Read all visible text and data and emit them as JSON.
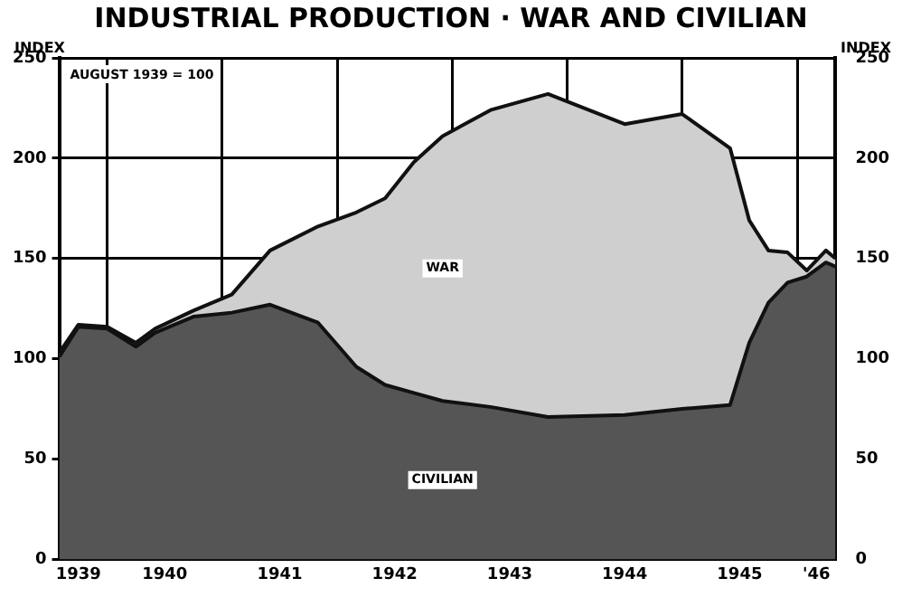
{
  "chart_data": {
    "type": "area",
    "title": "INDUSTRIAL PRODUCTION · WAR AND CIVILIAN",
    "ylabel": "INDEX",
    "y2label": "INDEX",
    "annotations": [
      "AUGUST 1939 = 100"
    ],
    "x": [
      "1939-08",
      "1939-10",
      "1940-01",
      "1940-04",
      "1940-06",
      "1940-10",
      "1941-02",
      "1941-06",
      "1941-11",
      "1942-03",
      "1942-06",
      "1942-09",
      "1942-12",
      "1943-05",
      "1943-11",
      "1944-07",
      "1945-01",
      "1945-06",
      "1945-08",
      "1945-10",
      "1945-12",
      "1946-02",
      "1946-04",
      "1946-05"
    ],
    "stacked": true,
    "series": [
      {
        "name": "CIVILIAN",
        "color": "#555555",
        "values": [
          101,
          116,
          115,
          106,
          113,
          121,
          123,
          127,
          118,
          96,
          87,
          83,
          79,
          76,
          71,
          72,
          75,
          77,
          108,
          128,
          138,
          141,
          148,
          146
        ]
      },
      {
        "name": "WAR",
        "color": "#cfcfcf",
        "values": [
          2,
          1,
          1,
          2,
          2,
          3,
          9,
          27,
          48,
          77,
          93,
          115,
          132,
          148,
          161,
          145,
          147,
          128,
          61,
          26,
          15,
          3,
          6,
          4
        ]
      }
    ],
    "xlim": [
      "1939-08",
      "1946-05"
    ],
    "xticks": [
      {
        "value": "1939-10",
        "label": "1939"
      },
      {
        "value": "1940-01",
        "label": null
      },
      {
        "value": "1940-07",
        "label": "1940"
      },
      {
        "value": "1941-01",
        "label": null
      },
      {
        "value": "1941-07",
        "label": "1941"
      },
      {
        "value": "1942-01",
        "label": null
      },
      {
        "value": "1942-07",
        "label": "1942"
      },
      {
        "value": "1943-01",
        "label": null
      },
      {
        "value": "1943-07",
        "label": "1943"
      },
      {
        "value": "1944-01",
        "label": null
      },
      {
        "value": "1944-07",
        "label": "1944"
      },
      {
        "value": "1945-01",
        "label": null
      },
      {
        "value": "1945-07",
        "label": "1945"
      },
      {
        "value": "1946-01",
        "label": null
      },
      {
        "value": "1946-03",
        "label": "'46"
      }
    ],
    "ylim": [
      0,
      250
    ],
    "yticks": [
      0,
      50,
      100,
      150,
      200,
      250
    ],
    "y2lim": [
      0,
      250
    ],
    "y2ticks": [
      0,
      50,
      100,
      150,
      200,
      250
    ],
    "grid": true,
    "legend": false
  }
}
